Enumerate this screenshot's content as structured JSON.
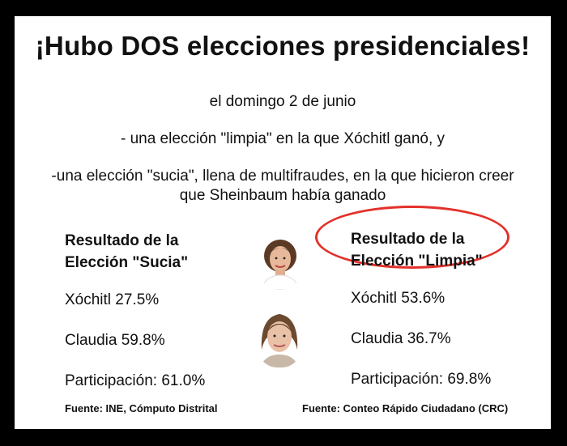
{
  "title": "¡Hubo DOS elecciones presidenciales!",
  "lines": {
    "date": "el domingo 2 de junio",
    "clean": "- una elección \"limpia\" en la que Xóchitl ganó, y",
    "dirty_1": "-una elección \"sucia\", llena de multifraudes, en la que hicieron creer",
    "dirty_2": "que Sheinbaum había ganado"
  },
  "left": {
    "heading_1": "Resultado de la",
    "heading_2": "Elección \"Sucia\"",
    "xochitl": "Xóchitl 27.5%",
    "claudia": "Claudia 59.8%",
    "participation": "Participación: 61.0%",
    "source": "Fuente: INE, Cómputo Distrital"
  },
  "right": {
    "heading_1": "Resultado de la",
    "heading_2": "Elección \"Limpia\"",
    "xochitl": "Xóchitl 53.6%",
    "claudia": "Claudia 36.7%",
    "participation": "Participación: 69.8%",
    "source": "Fuente: Conteo Rápido Ciudadano (CRC)"
  },
  "colors": {
    "highlight_ellipse": "#e3312b",
    "frame": "#000000"
  },
  "images": [
    "portrait-xochitl",
    "portrait-claudia"
  ]
}
